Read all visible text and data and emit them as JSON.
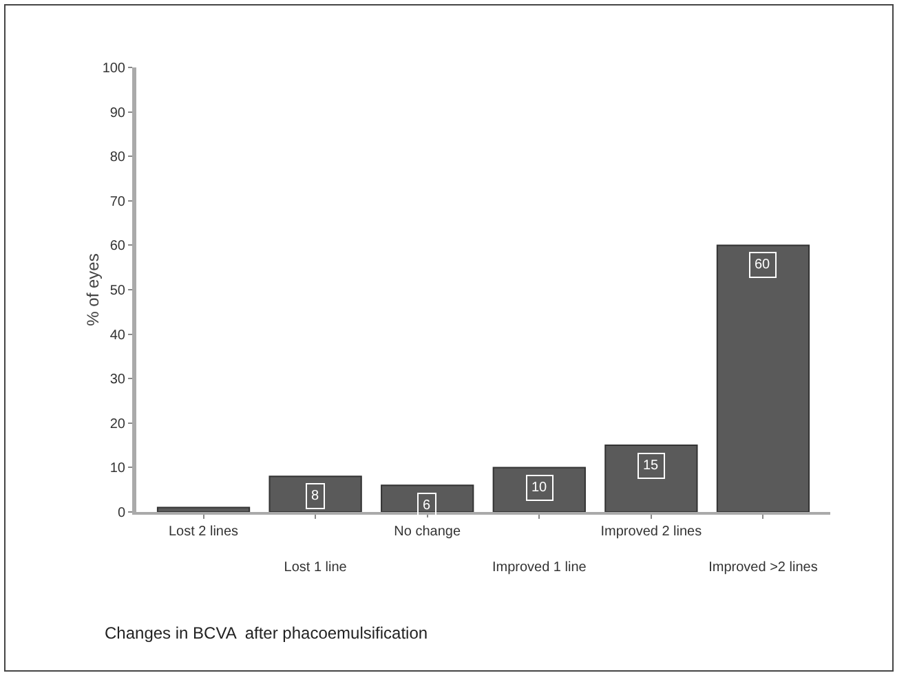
{
  "chart_data": {
    "type": "bar",
    "ylabel": "% of eyes",
    "categories": [
      "Lost 2 lines",
      "Lost 1 line",
      "No change",
      "Improved 1 line",
      "Improved 2 lines",
      "Improved >2 lines"
    ],
    "values": [
      1,
      8,
      6,
      10,
      15,
      60
    ],
    "value_labels": [
      null,
      "8",
      "6",
      "10",
      "15",
      "60"
    ],
    "color": "#5a5a5a",
    "ylim": [
      0,
      100
    ],
    "yticks": [
      0,
      10,
      20,
      30,
      40,
      50,
      60,
      70,
      80,
      90,
      100
    ],
    "grid": false,
    "annotations": [
      "Changes in BCVA  after phacoemulsification"
    ]
  }
}
